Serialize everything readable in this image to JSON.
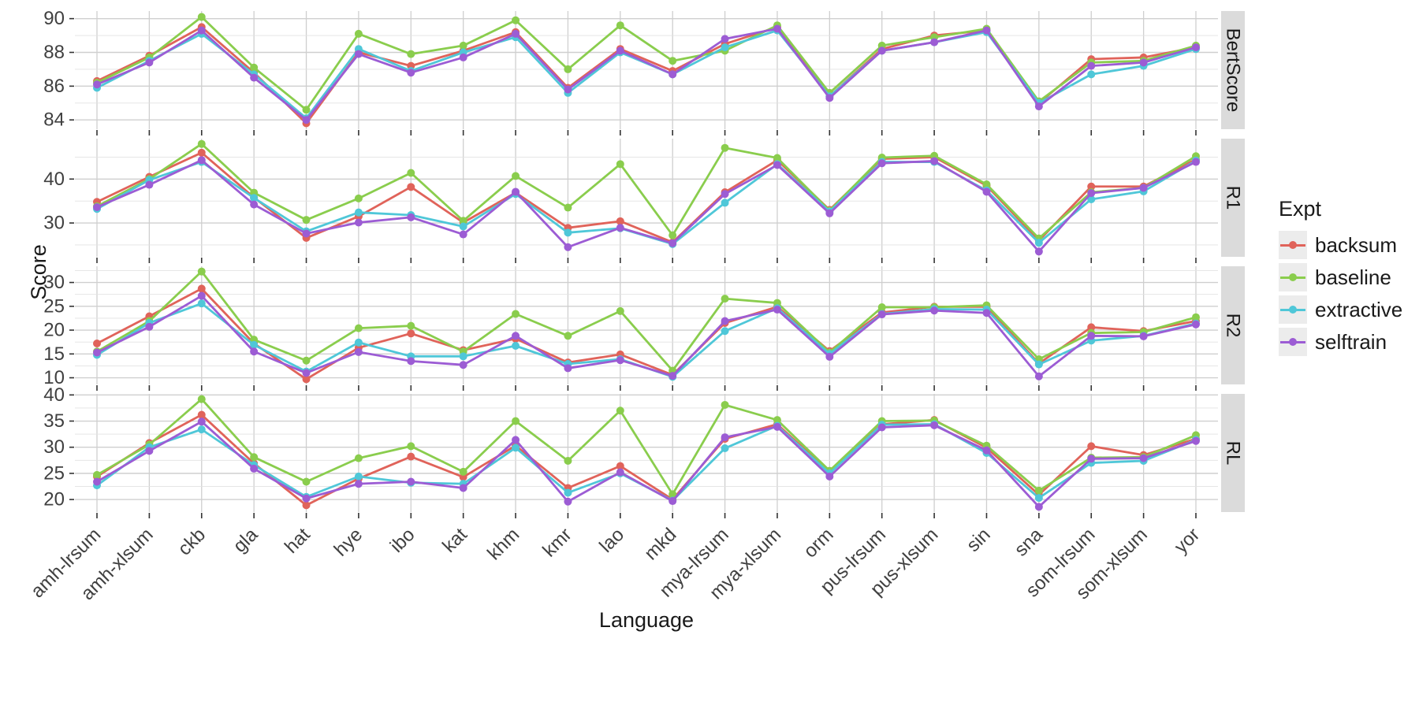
{
  "axes": {
    "y_title": "Score",
    "x_title": "Language"
  },
  "legend": {
    "title": "Expt",
    "items": [
      {
        "label": "backsum",
        "color": "#E0635A"
      },
      {
        "label": "baseline",
        "color": "#8ACD4D"
      },
      {
        "label": "extractive",
        "color": "#4FC7D8"
      },
      {
        "label": "selftrain",
        "color": "#9C5CD4"
      }
    ]
  },
  "palette": {
    "strip_bg": "#DBDBDB",
    "strip_text": "#1a1a1a",
    "grid_major": "#CFCFCF",
    "grid_minor": "#E2E2E2",
    "tick_text": "#404040",
    "tick_mark": "#333333"
  },
  "chart_data": {
    "type": "line",
    "xlabel": "Language",
    "ylabel": "Score",
    "legend_position": "right",
    "grid": true,
    "categories": [
      "amh-lrsum",
      "amh-xlsum",
      "ckb",
      "gla",
      "hat",
      "hye",
      "ibo",
      "kat",
      "khm",
      "kmr",
      "lao",
      "mkd",
      "mya-lrsum",
      "mya-xlsum",
      "orm",
      "pus-lrsum",
      "pus-xlsum",
      "sin",
      "sna",
      "som-lrsum",
      "som-xlsum",
      "yor"
    ],
    "facets": [
      {
        "label": "BertScore",
        "ylim": [
          83.45,
          90.45
        ],
        "tick_values": [
          84,
          86,
          88,
          90
        ],
        "minor_values": [
          85,
          87,
          89
        ],
        "series": [
          {
            "name": "backsum",
            "values": [
              86.3,
              87.8,
              89.5,
              86.8,
              83.8,
              88.0,
              87.2,
              88.1,
              89.2,
              85.9,
              88.2,
              86.9,
              88.5,
              89.5,
              85.4,
              88.2,
              89.0,
              89.3,
              85.0,
              87.6,
              87.7,
              88.3
            ]
          },
          {
            "name": "baseline",
            "values": [
              86.2,
              87.7,
              90.1,
              87.1,
              84.6,
              89.1,
              87.9,
              88.4,
              89.9,
              87.0,
              89.6,
              87.5,
              88.1,
              89.6,
              85.6,
              88.4,
              88.9,
              89.4,
              85.1,
              87.4,
              87.5,
              88.4
            ]
          },
          {
            "name": "extractive",
            "values": [
              85.9,
              87.5,
              89.1,
              86.7,
              84.1,
              88.2,
              86.9,
              88.0,
              88.9,
              85.6,
              88.0,
              86.7,
              88.3,
              89.3,
              85.4,
              88.1,
              88.6,
              89.2,
              85.0,
              86.7,
              87.2,
              88.2
            ]
          },
          {
            "name": "selftrain",
            "values": [
              86.1,
              87.4,
              89.3,
              86.5,
              84.0,
              87.9,
              86.8,
              87.7,
              89.1,
              85.8,
              88.1,
              86.7,
              88.8,
              89.4,
              85.3,
              88.1,
              88.6,
              89.3,
              84.8,
              87.2,
              87.4,
              88.3
            ]
          }
        ]
      },
      {
        "label": "R1",
        "ylim": [
          22.3,
          49.2
        ],
        "tick_values": [
          30,
          40
        ],
        "minor_values": [
          25,
          35,
          45
        ],
        "series": [
          {
            "name": "backsum",
            "values": [
              34.8,
              40.5,
              46.0,
              35.8,
              26.6,
              31.5,
              38.2,
              30.1,
              36.9,
              28.9,
              30.4,
              25.6,
              37.0,
              44.3,
              33.0,
              44.6,
              45.0,
              38.5,
              26.0,
              38.3,
              38.3,
              44.5
            ]
          },
          {
            "name": "baseline",
            "values": [
              33.8,
              40.0,
              48.0,
              36.9,
              30.7,
              35.6,
              41.4,
              30.5,
              40.7,
              33.5,
              43.4,
              27.2,
              47.1,
              44.8,
              32.8,
              44.9,
              45.3,
              38.8,
              26.5,
              37.0,
              38.0,
              45.2
            ]
          },
          {
            "name": "extractive",
            "values": [
              33.2,
              39.8,
              43.9,
              35.7,
              28.1,
              32.4,
              31.8,
              29.2,
              36.6,
              27.8,
              28.8,
              25.2,
              34.6,
              43.4,
              32.6,
              43.9,
              43.9,
              37.4,
              25.5,
              35.4,
              37.2,
              44.2
            ]
          },
          {
            "name": "selftrain",
            "values": [
              33.6,
              38.7,
              44.3,
              34.2,
              27.6,
              30.1,
              31.3,
              27.4,
              37.1,
              24.5,
              28.9,
              25.4,
              36.6,
              43.2,
              32.2,
              43.6,
              44.1,
              37.1,
              23.5,
              36.8,
              38.0,
              43.9
            ]
          }
        ]
      },
      {
        "label": "R2",
        "ylim": [
          8.6,
          33.4
        ],
        "tick_values": [
          10,
          15,
          20,
          25,
          30
        ],
        "minor_values": [
          12.5,
          17.5,
          22.5,
          27.5,
          32.5
        ],
        "series": [
          {
            "name": "backsum",
            "values": [
              17.2,
              22.9,
              28.7,
              17.2,
              9.7,
              16.3,
              19.3,
              15.8,
              18.2,
              13.2,
              14.9,
              10.6,
              21.5,
              24.9,
              15.6,
              23.7,
              24.9,
              24.9,
              13.0,
              20.6,
              19.8,
              21.9
            ]
          },
          {
            "name": "baseline",
            "values": [
              15.5,
              21.9,
              32.3,
              18.0,
              13.6,
              20.4,
              20.9,
              15.5,
              23.4,
              18.8,
              24.0,
              11.5,
              26.6,
              25.7,
              15.3,
              24.8,
              24.8,
              25.2,
              13.9,
              19.4,
              19.6,
              22.7
            ]
          },
          {
            "name": "extractive",
            "values": [
              14.8,
              21.5,
              25.6,
              16.9,
              11.3,
              17.4,
              14.5,
              14.5,
              16.7,
              12.9,
              13.9,
              10.2,
              19.8,
              24.6,
              15.0,
              23.4,
              24.4,
              24.3,
              12.8,
              17.8,
              18.8,
              21.4
            ]
          },
          {
            "name": "selftrain",
            "values": [
              15.3,
              20.7,
              27.2,
              15.5,
              11.0,
              15.4,
              13.5,
              12.7,
              18.8,
              12.0,
              13.7,
              10.4,
              21.9,
              24.3,
              14.4,
              23.3,
              24.1,
              23.6,
              10.3,
              18.8,
              18.7,
              21.2
            ]
          }
        ]
      },
      {
        "label": "RL",
        "ylim": [
          17.6,
          40.2
        ],
        "tick_values": [
          20,
          25,
          30,
          35,
          40
        ],
        "minor_values": [
          22.5,
          27.5,
          32.5,
          37.5
        ],
        "series": [
          {
            "name": "backsum",
            "values": [
              24.4,
              30.8,
              36.2,
              26.9,
              18.9,
              24.0,
              28.2,
              24.3,
              30.3,
              22.2,
              26.4,
              20.0,
              31.6,
              34.4,
              25.2,
              34.4,
              35.2,
              29.9,
              20.9,
              30.2,
              28.5,
              31.6
            ]
          },
          {
            "name": "baseline",
            "values": [
              24.7,
              30.5,
              39.2,
              28.1,
              23.4,
              27.9,
              30.2,
              25.3,
              35.0,
              27.4,
              37.0,
              21.0,
              38.1,
              35.2,
              25.5,
              35.0,
              35.1,
              30.3,
              21.7,
              28.0,
              28.1,
              32.3
            ]
          },
          {
            "name": "extractive",
            "values": [
              22.7,
              30.0,
              33.4,
              26.6,
              20.5,
              24.4,
              23.2,
              23.0,
              29.9,
              21.3,
              25.0,
              19.8,
              29.8,
              34.1,
              25.0,
              34.3,
              34.4,
              28.9,
              20.3,
              27.0,
              27.4,
              31.4
            ]
          },
          {
            "name": "selftrain",
            "values": [
              23.4,
              29.3,
              34.9,
              25.9,
              20.2,
              23.0,
              23.4,
              22.2,
              31.4,
              19.6,
              25.2,
              19.7,
              31.9,
              33.9,
              24.4,
              33.8,
              34.2,
              29.4,
              18.6,
              27.8,
              27.9,
              31.2
            ]
          }
        ]
      }
    ]
  }
}
